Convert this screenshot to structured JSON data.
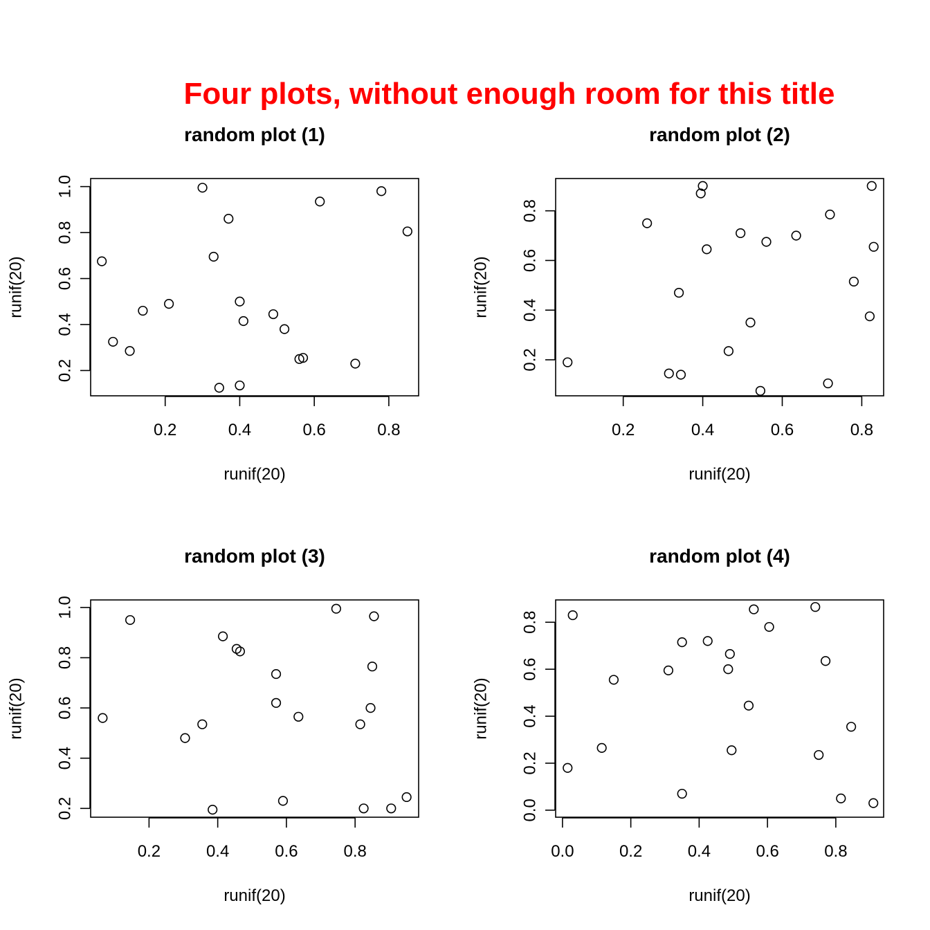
{
  "figure": {
    "title": "Four plots, without enough room for this title",
    "title_color": "#ff0000"
  },
  "chart_data": [
    {
      "type": "scatter",
      "title": "random plot (1)",
      "xlabel": "runif(20)",
      "ylabel": "runif(20)",
      "xlim": [
        0.0,
        0.88
      ],
      "ylim": [
        0.09,
        1.035
      ],
      "xticks": [
        "0.2",
        "0.4",
        "0.6",
        "0.8"
      ],
      "yticks": [
        "0.2",
        "0.4",
        "0.6",
        "0.8",
        "1.0"
      ],
      "x": [
        0.03,
        0.06,
        0.105,
        0.14,
        0.21,
        0.3,
        0.33,
        0.37,
        0.345,
        0.4,
        0.4,
        0.41,
        0.49,
        0.52,
        0.56,
        0.57,
        0.615,
        0.71,
        0.78,
        0.85
      ],
      "y": [
        0.675,
        0.325,
        0.285,
        0.46,
        0.49,
        0.995,
        0.695,
        0.86,
        0.125,
        0.5,
        0.135,
        0.415,
        0.445,
        0.38,
        0.25,
        0.255,
        0.935,
        0.23,
        0.98,
        0.805
      ]
    },
    {
      "type": "scatter",
      "title": "random plot (2)",
      "xlabel": "runif(20)",
      "ylabel": "runif(20)",
      "xlim": [
        0.03,
        0.855
      ],
      "ylim": [
        0.055,
        0.93
      ],
      "xticks": [
        "0.2",
        "0.4",
        "0.6",
        "0.8"
      ],
      "yticks": [
        "0.2",
        "0.4",
        "0.6",
        "0.8"
      ],
      "x": [
        0.06,
        0.26,
        0.315,
        0.34,
        0.345,
        0.395,
        0.4,
        0.41,
        0.465,
        0.495,
        0.52,
        0.545,
        0.56,
        0.635,
        0.715,
        0.72,
        0.78,
        0.82,
        0.825,
        0.83
      ],
      "y": [
        0.19,
        0.75,
        0.145,
        0.47,
        0.14,
        0.87,
        0.9,
        0.645,
        0.235,
        0.71,
        0.35,
        0.075,
        0.675,
        0.7,
        0.105,
        0.785,
        0.515,
        0.375,
        0.9,
        0.655
      ]
    },
    {
      "type": "scatter",
      "title": "random plot (3)",
      "xlabel": "runif(20)",
      "ylabel": "runif(20)",
      "xlim": [
        0.03,
        0.985
      ],
      "ylim": [
        0.165,
        1.03
      ],
      "xticks": [
        "0.2",
        "0.4",
        "0.6",
        "0.8"
      ],
      "yticks": [
        "0.2",
        "0.4",
        "0.6",
        "0.8",
        "1.0"
      ],
      "x": [
        0.065,
        0.145,
        0.305,
        0.355,
        0.385,
        0.415,
        0.455,
        0.465,
        0.57,
        0.57,
        0.59,
        0.635,
        0.745,
        0.815,
        0.825,
        0.845,
        0.85,
        0.855,
        0.905,
        0.95
      ],
      "y": [
        0.56,
        0.95,
        0.48,
        0.535,
        0.195,
        0.885,
        0.835,
        0.825,
        0.735,
        0.62,
        0.23,
        0.565,
        0.995,
        0.535,
        0.2,
        0.6,
        0.765,
        0.965,
        0.2,
        0.245
      ]
    },
    {
      "type": "scatter",
      "title": "random plot (4)",
      "xlabel": "runif(20)",
      "ylabel": "runif(20)",
      "xlim": [
        -0.02,
        0.94
      ],
      "ylim": [
        -0.03,
        0.895
      ],
      "xticks": [
        "0.0",
        "0.2",
        "0.4",
        "0.6",
        "0.8"
      ],
      "yticks": [
        "0.0",
        "0.2",
        "0.4",
        "0.6",
        "0.8"
      ],
      "x": [
        0.015,
        0.03,
        0.115,
        0.15,
        0.31,
        0.35,
        0.35,
        0.425,
        0.485,
        0.49,
        0.495,
        0.545,
        0.56,
        0.605,
        0.74,
        0.75,
        0.77,
        0.815,
        0.845,
        0.91
      ],
      "y": [
        0.18,
        0.83,
        0.265,
        0.555,
        0.595,
        0.715,
        0.07,
        0.72,
        0.6,
        0.665,
        0.255,
        0.445,
        0.855,
        0.78,
        0.865,
        0.235,
        0.635,
        0.05,
        0.355,
        0.03
      ]
    }
  ]
}
